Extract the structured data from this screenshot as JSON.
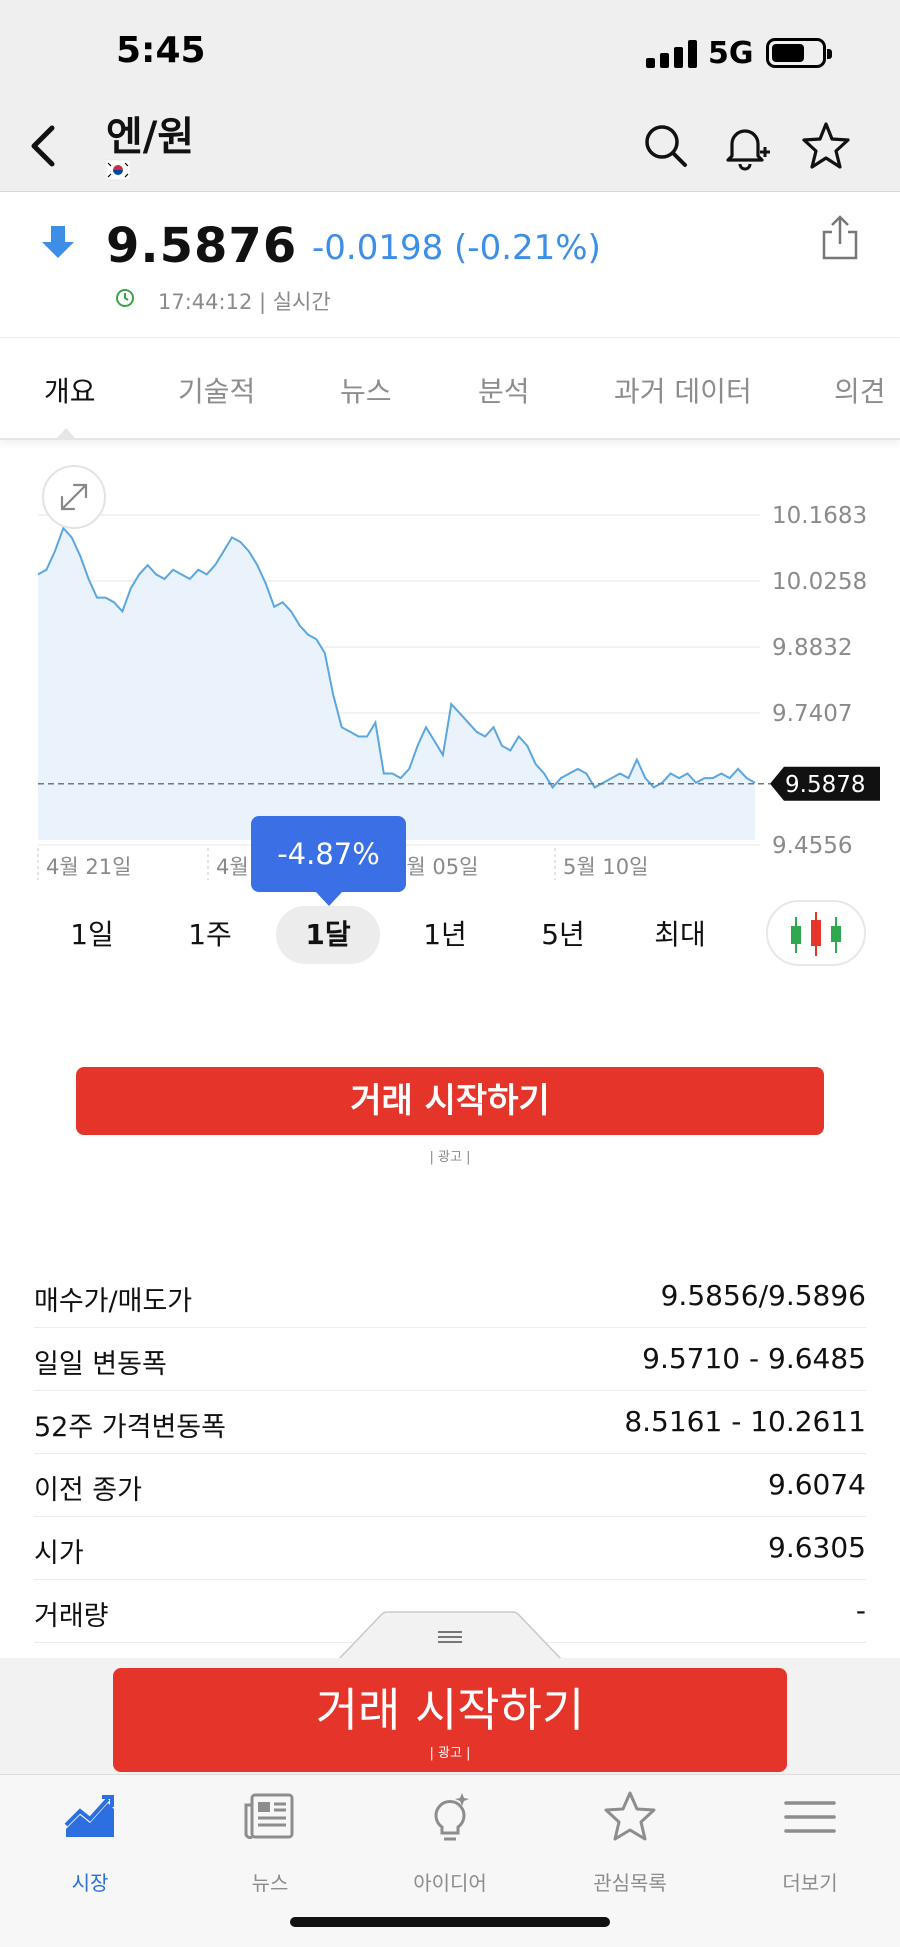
{
  "status_bar": {
    "time": "5:45",
    "network": "5G"
  },
  "header": {
    "title": "엔/원",
    "flag_icon": "korea-flag-icon",
    "actions": [
      "search-icon",
      "bell-plus-icon",
      "star-icon"
    ]
  },
  "quote": {
    "price": "9.5876",
    "change": "-0.0198 (-0.21%)",
    "timestamp": "17:44:12 | 실시간",
    "direction": "down",
    "down_color": "#3d8ee6"
  },
  "tabs": [
    "개요",
    "기술적",
    "뉴스",
    "분석",
    "과거 데이터",
    "의견"
  ],
  "active_tab": 0,
  "chart_data": {
    "type": "area",
    "period": "1달",
    "x_labels": [
      "4월 21일",
      "4월 28일",
      "5월 05일",
      "5월 10일"
    ],
    "y_ticks": [
      "10.1683",
      "10.0258",
      "9.8832",
      "9.7407",
      "9.5878",
      "9.4556"
    ],
    "ylim": [
      9.4556,
      10.1683
    ],
    "current_value": "9.5878",
    "change_label": "-4.87%",
    "line_color": "#5aa6e0",
    "series": [
      {
        "values": [
          10.04,
          10.05,
          10.09,
          10.14,
          10.12,
          10.08,
          10.03,
          9.99,
          9.99,
          9.98,
          9.96,
          10.01,
          10.04,
          10.06,
          10.04,
          10.03,
          10.05,
          10.04,
          10.03,
          10.05,
          10.04,
          10.06,
          10.09,
          10.12,
          10.11,
          10.09,
          10.06,
          10.02,
          9.97,
          9.98,
          9.96,
          9.93,
          9.91,
          9.9,
          9.87,
          9.78,
          9.71,
          9.7,
          9.69,
          9.69,
          9.72,
          9.61,
          9.61,
          9.6,
          9.62,
          9.67,
          9.71,
          9.68,
          9.65,
          9.76,
          9.74,
          9.72,
          9.7,
          9.69,
          9.71,
          9.67,
          9.66,
          9.69,
          9.67,
          9.63,
          9.61,
          9.58,
          9.6,
          9.61,
          9.62,
          9.61,
          9.58,
          9.59,
          9.6,
          9.61,
          9.6,
          9.64,
          9.6,
          9.58,
          9.59,
          9.61,
          9.6,
          9.61,
          9.59,
          9.6,
          9.6,
          9.61,
          9.6,
          9.62,
          9.6,
          9.59
        ]
      }
    ]
  },
  "ranges": [
    "1일",
    "1주",
    "1달",
    "1년",
    "5년",
    "최대"
  ],
  "selected_range": 2,
  "cta": {
    "label": "거래 시작하기",
    "ad": "| 광고 |"
  },
  "stats": [
    {
      "label": "매수가/매도가",
      "value": "9.5856/9.5896"
    },
    {
      "label": "일일 변동폭",
      "value": "9.5710 - 9.6485"
    },
    {
      "label": "52주 가격변동폭",
      "value": "8.5161 - 10.2611"
    },
    {
      "label": "이전 종가",
      "value": "9.6074"
    },
    {
      "label": "시가",
      "value": "9.6305"
    },
    {
      "label": "거래량",
      "value": "-"
    }
  ],
  "bottom_cta": {
    "label": "거래 시작하기",
    "ad": "| 광고 |"
  },
  "tab_bar": [
    {
      "label": "시장",
      "icon": "chart-trend-icon"
    },
    {
      "label": "뉴스",
      "icon": "newspaper-icon"
    },
    {
      "label": "아이디어",
      "icon": "lightbulb-icon"
    },
    {
      "label": "관심목록",
      "icon": "star-icon"
    },
    {
      "label": "더보기",
      "icon": "menu-icon"
    }
  ],
  "colors": {
    "accent": "#2d6fe0",
    "cta": "#e5342a",
    "up": "#e5342a",
    "down": "#3d8ee6"
  }
}
